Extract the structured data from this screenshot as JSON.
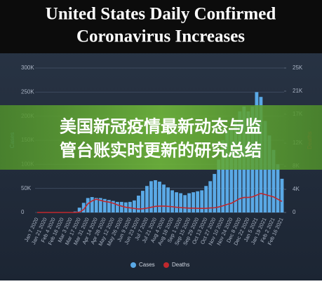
{
  "header": {
    "title": [
      "United States Daily Confirmed",
      "Coronavirus Increases"
    ]
  },
  "banner": {
    "lines": [
      "美国新冠疫情最新动态与监",
      "管台账实时更新的研究总结"
    ]
  },
  "chart_data": {
    "type": "bar",
    "ylabel": "Cases",
    "y2label": "Deaths",
    "categories": [
      "Jan 7 2020",
      null,
      "Jan 21 2020",
      null,
      "Feb 4 2020",
      null,
      "Feb 18 2020",
      null,
      "Mar 3 2020",
      null,
      "Mar 17 2020",
      null,
      "Mar 31 2020",
      null,
      "Apr 14 2020",
      null,
      "Apr 28 2020",
      null,
      "May 12 2020",
      null,
      "May 26 2020",
      null,
      "Jun 9 2020",
      null,
      "Jun 23 2020",
      null,
      "Jul 7 2020",
      null,
      "Jul 21 2020",
      null,
      "Aug 4 2020",
      null,
      "Aug 18 2020",
      null,
      "Sep 1 2020",
      null,
      "Sep 15 2020",
      null,
      "Sep 29 2020",
      null,
      "Oct 13 2020",
      null,
      "Oct 27 2020",
      null,
      "Nov 10 2020",
      null,
      "Nov 24 2020",
      null,
      "Dec 8 2020",
      null,
      "Dec 22 2020",
      null,
      "Jan 5 2021",
      null,
      "Jan 19 2021",
      null,
      "Feb 2 2021",
      null,
      "Feb 16 2021"
    ],
    "series": [
      {
        "name": "Cases",
        "color": "#5aa9e6",
        "values": [
          0,
          0,
          0,
          0,
          0,
          0,
          0,
          0,
          500,
          2000,
          10000,
          20000,
          30000,
          32000,
          30000,
          30000,
          28000,
          26000,
          24000,
          22000,
          22000,
          21000,
          22000,
          25000,
          35000,
          45000,
          55000,
          65000,
          67000,
          64000,
          58000,
          52000,
          46000,
          42000,
          40000,
          36000,
          40000,
          42000,
          44000,
          46000,
          55000,
          65000,
          80000,
          110000,
          150000,
          170000,
          175000,
          190000,
          210000,
          220000,
          210000,
          220000,
          250000,
          240000,
          190000,
          160000,
          130000,
          100000,
          70000
        ]
      },
      {
        "name": "Deaths",
        "color": "#c0282d",
        "axis": "y2",
        "values": [
          0,
          0,
          0,
          0,
          0,
          0,
          0,
          0,
          0,
          0,
          50,
          500,
          1500,
          2000,
          2300,
          2100,
          1900,
          1800,
          1600,
          1300,
          1100,
          900,
          800,
          700,
          600,
          650,
          750,
          900,
          1050,
          1100,
          1100,
          1050,
          1000,
          900,
          850,
          800,
          750,
          750,
          720,
          700,
          720,
          780,
          820,
          950,
          1150,
          1400,
          1600,
          2000,
          2400,
          2600,
          2600,
          2700,
          3000,
          3300,
          3100,
          2900,
          2700,
          2300,
          1900
        ]
      }
    ],
    "ylim": [
      0,
      300000
    ],
    "yticks": [
      0,
      {
        "value": 50000,
        "label": "50K"
      },
      {
        "value": 100000,
        "label": "100K"
      },
      {
        "value": 150000,
        "label": "150K"
      },
      {
        "value": 200000,
        "label": "200K"
      },
      {
        "value": 250000,
        "label": "250K"
      },
      {
        "value": 300000,
        "label": "300K"
      }
    ],
    "y2lim": [
      0,
      25000
    ],
    "y2ticks": [
      0,
      {
        "value": 4000,
        "label": "4K"
      },
      {
        "value": 8000,
        "label": "8K"
      },
      {
        "value": 12000,
        "label": "12K"
      },
      {
        "value": 17000,
        "label": "17K"
      },
      {
        "value": 21000,
        "label": "21K"
      },
      {
        "value": 25000,
        "label": "25K"
      }
    ],
    "grid": true
  }
}
